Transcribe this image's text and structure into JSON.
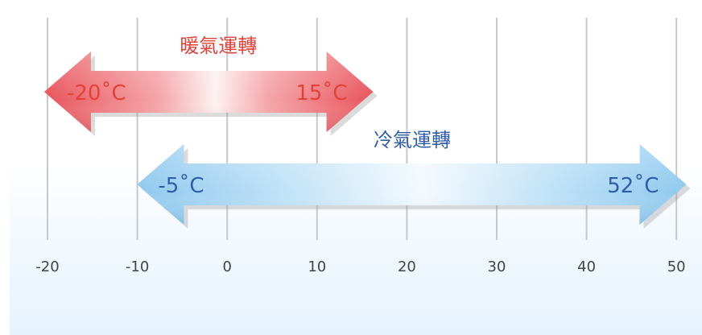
{
  "heating": {
    "title": "暖氣運轉",
    "min": -20,
    "max": 15,
    "min_label": "-20˚C",
    "max_label": "15˚C",
    "color": "#e3423a"
  },
  "cooling": {
    "title": "冷氣運轉",
    "min": -5,
    "max": 52,
    "min_label": "-5˚C",
    "max_label": "52˚C",
    "color": "#2f5ea8"
  },
  "axis": {
    "ticks": [
      -20,
      -10,
      0,
      10,
      20,
      30,
      40,
      50
    ],
    "tick_labels": [
      "-20",
      "-10",
      "0",
      "10",
      "20",
      "30",
      "40",
      "50"
    ],
    "gridline_color": "#c8c8c8"
  }
}
